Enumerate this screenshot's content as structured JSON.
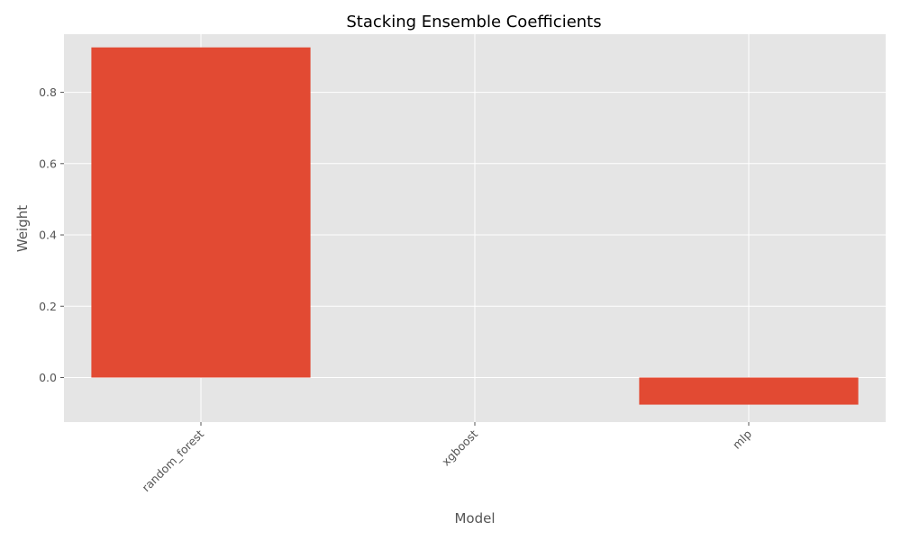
{
  "chart_data": {
    "type": "bar",
    "title": "Stacking Ensemble Coefficients",
    "xlabel": "Model",
    "ylabel": "Weight",
    "categories": [
      "random_forest",
      "xgboost",
      "mlp"
    ],
    "values": [
      0.926,
      0.0,
      -0.076
    ],
    "ylim": [
      -0.125,
      0.963
    ],
    "yticks": [
      0.0,
      0.2,
      0.4,
      0.6,
      0.8
    ],
    "ytick_labels": [
      "0.0",
      "0.2",
      "0.4",
      "0.6",
      "0.8"
    ],
    "grid": true,
    "bar_color": "#e24a33",
    "plot_background": "#e5e5e5",
    "grid_color": "#ffffff"
  }
}
